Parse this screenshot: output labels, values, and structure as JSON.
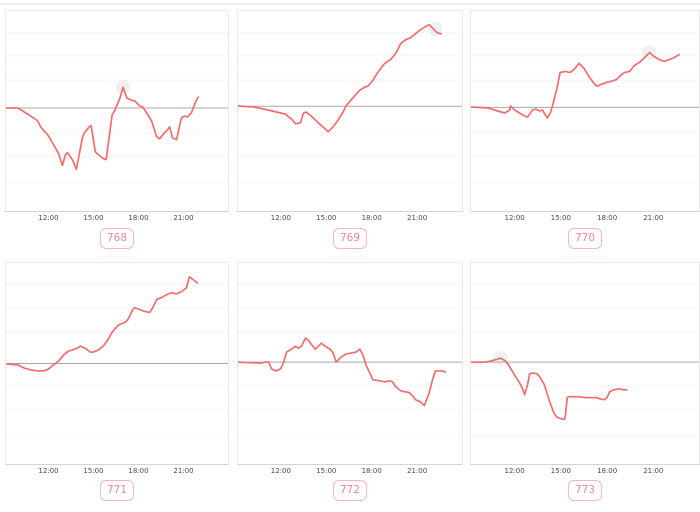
{
  "page": {
    "background": "#ffffff",
    "clipped_title_fragment": "· ·· · ·· ·"
  },
  "style": {
    "line_color": "#f26e6e",
    "baseline_color": "#a8a8a8",
    "grid_color": "#eeeeee",
    "halo_color": "#f0f0f0",
    "frame_color": "#e9e9e9",
    "axis_color": "#d4d4d4",
    "tick_text_color": "#4a4a4a",
    "badge_border_color": "#f8b4c6",
    "badge_text_color": "#ee85a2",
    "top_strip_color": "#ececec"
  },
  "chart_data": [
    {
      "label": "768",
      "type": "line",
      "x_tick_labels": [
        "12:00",
        "15:00",
        "18:00",
        "21:00"
      ],
      "x_tick_pct": [
        19.4,
        39.5,
        59.6,
        79.7
      ],
      "grid_pct": [
        10.7,
        22.4,
        34.6,
        61.0,
        72.7,
        85.6
      ],
      "baseline_pct": 48.5,
      "halo_pct": [
        52.7,
        38.1
      ],
      "points_pct": [
        [
          0,
          48.5
        ],
        [
          5.4,
          48.5
        ],
        [
          12.5,
          53.5
        ],
        [
          14.3,
          55.0
        ],
        [
          15.6,
          57.9
        ],
        [
          17.9,
          60.9
        ],
        [
          18.8,
          61.9
        ],
        [
          21.4,
          66.8
        ],
        [
          23.7,
          71.3
        ],
        [
          25.4,
          77.2
        ],
        [
          26.8,
          71.8
        ],
        [
          27.7,
          70.8
        ],
        [
          29.9,
          74.3
        ],
        [
          31.7,
          79.2
        ],
        [
          34.4,
          63.4
        ],
        [
          35.3,
          60.9
        ],
        [
          37.5,
          57.9
        ],
        [
          38.4,
          57.4
        ],
        [
          40.2,
          70.3
        ],
        [
          41.1,
          71.3
        ],
        [
          43.8,
          73.8
        ],
        [
          45.1,
          74.3
        ],
        [
          47.8,
          52.0
        ],
        [
          49.1,
          49.5
        ],
        [
          51.3,
          43.6
        ],
        [
          52.7,
          38.1
        ],
        [
          54.5,
          43.6
        ],
        [
          56.7,
          44.6
        ],
        [
          58.0,
          45.0
        ],
        [
          60.3,
          47.5
        ],
        [
          61.6,
          48.0
        ],
        [
          63.4,
          51.0
        ],
        [
          65.6,
          55.0
        ],
        [
          67.9,
          62.9
        ],
        [
          69.2,
          63.9
        ],
        [
          71.4,
          60.9
        ],
        [
          72.8,
          59.4
        ],
        [
          73.7,
          57.9
        ],
        [
          75.0,
          63.4
        ],
        [
          76.8,
          64.4
        ],
        [
          79.0,
          53.5
        ],
        [
          80.4,
          52.5
        ],
        [
          81.7,
          53.0
        ],
        [
          83.5,
          51.0
        ],
        [
          85.7,
          44.6
        ],
        [
          86.6,
          43.1
        ]
      ]
    },
    {
      "label": "769",
      "type": "line",
      "x_tick_labels": [
        "12:00",
        "15:00",
        "18:00",
        "21:00"
      ],
      "x_tick_pct": [
        19.4,
        39.5,
        59.6,
        79.7
      ],
      "grid_pct": [
        10.7,
        22.4,
        34.6,
        61.0,
        72.7,
        85.6
      ],
      "baseline_pct": 47.6,
      "halo_pct": [
        88.1,
        8.9
      ],
      "points_pct": [
        [
          0,
          47.5
        ],
        [
          7.1,
          48.0
        ],
        [
          11.5,
          49.0
        ],
        [
          19.0,
          51.0
        ],
        [
          21.2,
          51.5
        ],
        [
          22.6,
          53.0
        ],
        [
          23.9,
          54.0
        ],
        [
          25.7,
          56.4
        ],
        [
          27.9,
          55.9
        ],
        [
          29.2,
          51.0
        ],
        [
          30.5,
          50.5
        ],
        [
          32.7,
          52.5
        ],
        [
          35.8,
          55.9
        ],
        [
          38.9,
          58.9
        ],
        [
          40.3,
          60.4
        ],
        [
          42.5,
          57.9
        ],
        [
          44.7,
          54.5
        ],
        [
          46.9,
          50.5
        ],
        [
          48.2,
          47.5
        ],
        [
          50.4,
          44.6
        ],
        [
          52.7,
          41.6
        ],
        [
          54.4,
          39.6
        ],
        [
          56.6,
          38.1
        ],
        [
          58.0,
          37.6
        ],
        [
          60.2,
          34.7
        ],
        [
          61.5,
          32.2
        ],
        [
          63.7,
          28.7
        ],
        [
          65.5,
          26.2
        ],
        [
          66.8,
          25.2
        ],
        [
          68.1,
          24.3
        ],
        [
          70.4,
          21.3
        ],
        [
          72.6,
          16.3
        ],
        [
          74.8,
          14.4
        ],
        [
          77.0,
          13.4
        ],
        [
          79.2,
          11.4
        ],
        [
          81.4,
          9.4
        ],
        [
          83.6,
          7.9
        ],
        [
          85.4,
          6.9
        ],
        [
          87.6,
          9.4
        ],
        [
          88.9,
          10.9
        ],
        [
          90.7,
          11.4
        ]
      ]
    },
    {
      "label": "770",
      "type": "line",
      "x_tick_labels": [
        "12:00",
        "15:00",
        "18:00",
        "21:00"
      ],
      "x_tick_pct": [
        19.4,
        39.5,
        59.6,
        79.7
      ],
      "grid_pct": [
        10.7,
        22.4,
        34.6,
        61.0,
        72.7,
        85.6
      ],
      "baseline_pct": 48.2,
      "halo_pct": [
        78.3,
        20.8
      ],
      "points_pct": [
        [
          0,
          48.0
        ],
        [
          7.4,
          48.5
        ],
        [
          11.7,
          50.0
        ],
        [
          14.8,
          51.0
        ],
        [
          17.0,
          49.5
        ],
        [
          17.4,
          47.5
        ],
        [
          19.1,
          49.5
        ],
        [
          21.3,
          51.0
        ],
        [
          23.5,
          52.5
        ],
        [
          24.8,
          53.0
        ],
        [
          27.0,
          49.5
        ],
        [
          28.3,
          49.0
        ],
        [
          30.0,
          50.0
        ],
        [
          31.3,
          49.5
        ],
        [
          33.5,
          53.5
        ],
        [
          34.8,
          51.0
        ],
        [
          36.1,
          46.0
        ],
        [
          37.8,
          38.1
        ],
        [
          39.1,
          30.7
        ],
        [
          41.3,
          30.2
        ],
        [
          43.5,
          30.7
        ],
        [
          45.2,
          29.2
        ],
        [
          47.4,
          26.2
        ],
        [
          49.6,
          28.7
        ],
        [
          51.7,
          32.7
        ],
        [
          53.9,
          36.1
        ],
        [
          55.2,
          37.6
        ],
        [
          57.4,
          36.6
        ],
        [
          59.6,
          35.6
        ],
        [
          61.7,
          35.1
        ],
        [
          63.9,
          34.2
        ],
        [
          66.1,
          31.7
        ],
        [
          67.4,
          30.7
        ],
        [
          69.6,
          30.2
        ],
        [
          71.7,
          27.2
        ],
        [
          73.9,
          25.7
        ],
        [
          76.1,
          23.3
        ],
        [
          77.4,
          21.8
        ],
        [
          78.3,
          20.8
        ],
        [
          80.4,
          22.8
        ],
        [
          82.6,
          24.3
        ],
        [
          84.8,
          25.2
        ],
        [
          87.0,
          24.3
        ],
        [
          89.1,
          23.3
        ],
        [
          91.3,
          21.8
        ]
      ]
    },
    {
      "label": "771",
      "type": "line",
      "x_tick_labels": [
        "12:00",
        "15:00",
        "18:00",
        "21:00"
      ],
      "x_tick_pct": [
        19.4,
        39.5,
        59.6,
        79.7
      ],
      "grid_pct": [
        10.7,
        22.4,
        34.6,
        61.0,
        72.7,
        85.6
      ],
      "baseline_pct": 50.0,
      "halo_pct": null,
      "points_pct": [
        [
          0,
          50.2
        ],
        [
          5.4,
          50.7
        ],
        [
          8.0,
          52.2
        ],
        [
          11.2,
          53.2
        ],
        [
          14.3,
          53.7
        ],
        [
          17.0,
          53.7
        ],
        [
          19.2,
          52.7
        ],
        [
          21.4,
          50.7
        ],
        [
          23.7,
          48.8
        ],
        [
          25.9,
          45.8
        ],
        [
          28.1,
          43.8
        ],
        [
          29.9,
          43.3
        ],
        [
          32.1,
          42.4
        ],
        [
          33.5,
          41.4
        ],
        [
          35.7,
          42.4
        ],
        [
          37.9,
          44.3
        ],
        [
          39.3,
          44.3
        ],
        [
          41.5,
          43.3
        ],
        [
          43.8,
          41.4
        ],
        [
          45.5,
          38.9
        ],
        [
          47.8,
          34.5
        ],
        [
          50.0,
          31.5
        ],
        [
          51.3,
          30.5
        ],
        [
          53.6,
          29.6
        ],
        [
          54.9,
          28.1
        ],
        [
          57.1,
          23.2
        ],
        [
          58.0,
          22.2
        ],
        [
          60.3,
          23.2
        ],
        [
          62.5,
          24.1
        ],
        [
          64.7,
          24.6
        ],
        [
          66.1,
          22.2
        ],
        [
          67.9,
          18.2
        ],
        [
          70.1,
          17.2
        ],
        [
          72.3,
          15.8
        ],
        [
          74.6,
          14.8
        ],
        [
          76.8,
          15.3
        ],
        [
          79.0,
          14.3
        ],
        [
          81.3,
          12.3
        ],
        [
          82.6,
          6.9
        ],
        [
          83.9,
          7.9
        ],
        [
          86.2,
          9.9
        ]
      ]
    },
    {
      "label": "772",
      "type": "line",
      "x_tick_labels": [
        "12:00",
        "15:00",
        "18:00",
        "21:00"
      ],
      "x_tick_pct": [
        19.4,
        39.5,
        59.6,
        79.7
      ],
      "grid_pct": [
        10.7,
        22.4,
        34.6,
        61.0,
        72.7,
        85.6
      ],
      "baseline_pct": 49.3,
      "halo_pct": null,
      "points_pct": [
        [
          0,
          49.3
        ],
        [
          10.2,
          49.8
        ],
        [
          12.4,
          49.3
        ],
        [
          13.7,
          49.3
        ],
        [
          15.0,
          52.7
        ],
        [
          16.8,
          53.7
        ],
        [
          19.0,
          52.7
        ],
        [
          20.4,
          49.3
        ],
        [
          21.7,
          44.3
        ],
        [
          23.9,
          42.9
        ],
        [
          25.7,
          41.4
        ],
        [
          27.0,
          42.4
        ],
        [
          28.3,
          41.4
        ],
        [
          30.1,
          37.4
        ],
        [
          31.4,
          38.4
        ],
        [
          32.7,
          40.4
        ],
        [
          34.5,
          42.9
        ],
        [
          35.8,
          41.4
        ],
        [
          37.2,
          39.9
        ],
        [
          38.9,
          41.4
        ],
        [
          41.2,
          42.9
        ],
        [
          42.5,
          44.8
        ],
        [
          43.8,
          49.3
        ],
        [
          46.0,
          46.8
        ],
        [
          48.2,
          45.3
        ],
        [
          50.4,
          44.8
        ],
        [
          52.7,
          44.3
        ],
        [
          54.4,
          42.9
        ],
        [
          55.8,
          45.8
        ],
        [
          57.1,
          50.7
        ],
        [
          58.8,
          54.7
        ],
        [
          60.2,
          58.1
        ],
        [
          63.3,
          58.6
        ],
        [
          65.5,
          59.1
        ],
        [
          67.7,
          58.6
        ],
        [
          69.0,
          59.1
        ],
        [
          70.4,
          61.6
        ],
        [
          72.6,
          63.5
        ],
        [
          74.3,
          64.0
        ],
        [
          76.5,
          64.5
        ],
        [
          77.9,
          66.0
        ],
        [
          79.2,
          68.0
        ],
        [
          81.4,
          69.0
        ],
        [
          83.2,
          70.9
        ],
        [
          85.4,
          64.5
        ],
        [
          86.7,
          58.6
        ],
        [
          88.1,
          53.7
        ],
        [
          91.2,
          53.7
        ],
        [
          92.5,
          54.2
        ]
      ]
    },
    {
      "label": "773",
      "type": "line",
      "x_tick_labels": [
        "12:00",
        "15:00",
        "18:00",
        "21:00"
      ],
      "x_tick_pct": [
        19.4,
        39.5,
        59.6,
        79.7
      ],
      "grid_pct": [
        10.7,
        22.4,
        34.6,
        61.0,
        72.7,
        85.6
      ],
      "baseline_pct": 49.3,
      "halo_pct": [
        13.0,
        47.3
      ],
      "points_pct": [
        [
          0,
          49.3
        ],
        [
          6.1,
          49.3
        ],
        [
          8.7,
          48.8
        ],
        [
          11.7,
          47.8
        ],
        [
          13.0,
          47.3
        ],
        [
          15.2,
          48.8
        ],
        [
          17.0,
          51.7
        ],
        [
          19.1,
          55.7
        ],
        [
          21.3,
          59.6
        ],
        [
          22.6,
          62.6
        ],
        [
          23.5,
          65.5
        ],
        [
          24.8,
          60.6
        ],
        [
          25.7,
          55.2
        ],
        [
          27.0,
          54.7
        ],
        [
          29.1,
          55.2
        ],
        [
          30.4,
          57.1
        ],
        [
          32.2,
          60.6
        ],
        [
          33.5,
          65.5
        ],
        [
          34.8,
          70.0
        ],
        [
          36.5,
          74.9
        ],
        [
          37.8,
          76.8
        ],
        [
          39.1,
          77.3
        ],
        [
          40.9,
          77.8
        ],
        [
          41.3,
          76.8
        ],
        [
          42.2,
          67.0
        ],
        [
          43.0,
          66.5
        ],
        [
          46.5,
          66.5
        ],
        [
          50.9,
          67.0
        ],
        [
          55.2,
          67.0
        ],
        [
          56.1,
          67.5
        ],
        [
          58.3,
          68.0
        ],
        [
          59.6,
          67.0
        ],
        [
          60.9,
          64.0
        ],
        [
          62.6,
          63.1
        ],
        [
          64.8,
          62.6
        ],
        [
          67.0,
          63.1
        ],
        [
          68.3,
          63.1
        ]
      ]
    }
  ]
}
